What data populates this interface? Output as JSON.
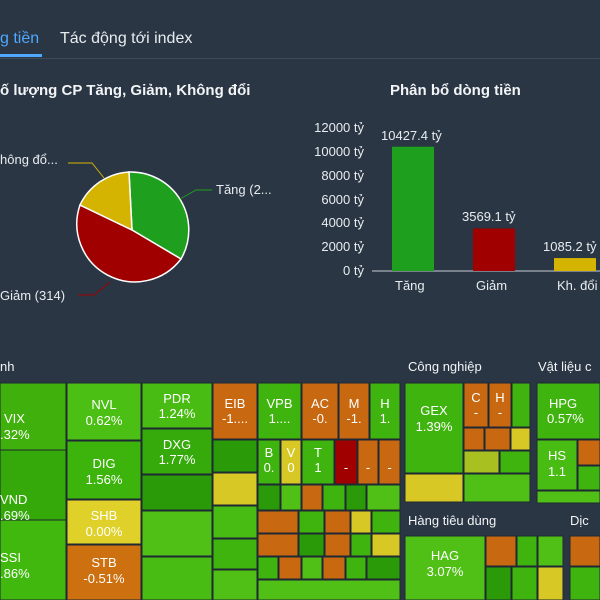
{
  "tabs": [
    {
      "label": "g tiền",
      "active": true
    },
    {
      "label": "Tác động tới index",
      "active": false
    }
  ],
  "colors": {
    "accent": "#4fa8ff",
    "up": "#1ea01e",
    "down": "#a00000",
    "flat": "#d4b400"
  },
  "pie": {
    "title": "ố lượng CP Tăng, Giảm, Không đổi",
    "labels": {
      "tang": "Tăng (2...",
      "giam": "Giảm (314)",
      "khongdoi": "hông đổ..."
    }
  },
  "chart_data": {
    "type": "bar",
    "title": "Phân bổ dòng tiền",
    "categories": [
      "Tăng",
      "Giảm",
      "Kh. đổi"
    ],
    "values": [
      10427.4,
      3569.1,
      1085.2
    ],
    "value_labels": [
      "10427.4 tỷ",
      "3569.1 tỷ",
      "1085.2 tỷ"
    ],
    "colors": [
      "#1ea01e",
      "#a00000",
      "#d4b400"
    ],
    "yticks": [
      "12000 tỷ",
      "10000 tỷ",
      "8000 tỷ",
      "6000 tỷ",
      "4000 tỷ",
      "2000 tỷ",
      "0 tỷ"
    ],
    "ylim": [
      0,
      12000
    ]
  },
  "treemap": {
    "sections": [
      "nh",
      "Công nghiệp",
      "Vật liệu c",
      "Hàng tiêu dùng",
      "Dịc"
    ],
    "tiles": [
      {
        "sym": "VIX",
        "val": ".32%"
      },
      {
        "sym": "VND",
        "val": ".69%"
      },
      {
        "sym": "SSI",
        "val": ".86%"
      },
      {
        "sym": "NVL",
        "val": "0.62%"
      },
      {
        "sym": "DIG",
        "val": "1.56%"
      },
      {
        "sym": "SHB",
        "val": "0.00%"
      },
      {
        "sym": "STB",
        "val": "-0.51%"
      },
      {
        "sym": "PDR",
        "val": "1.24%"
      },
      {
        "sym": "DXG",
        "val": "1.77%"
      },
      {
        "sym": "EIB",
        "val": "-1...."
      },
      {
        "sym": "VPB",
        "val": "1...."
      },
      {
        "sym": "AC",
        "val": "-0."
      },
      {
        "sym": "M",
        "val": "-1."
      },
      {
        "sym": "H",
        "val": "1."
      },
      {
        "sym": "B",
        "val": "0."
      },
      {
        "sym": "V",
        "val": "0"
      },
      {
        "sym": "T",
        "val": "1"
      },
      {
        "sym": "GEX",
        "val": "1.39%"
      },
      {
        "sym": "C",
        "val": "-"
      },
      {
        "sym": "H",
        "val": "-"
      },
      {
        "sym": "HPG",
        "val": "0.57%"
      },
      {
        "sym": "HS",
        "val": "1.1"
      },
      {
        "sym": "HAG",
        "val": "3.07%"
      }
    ]
  }
}
